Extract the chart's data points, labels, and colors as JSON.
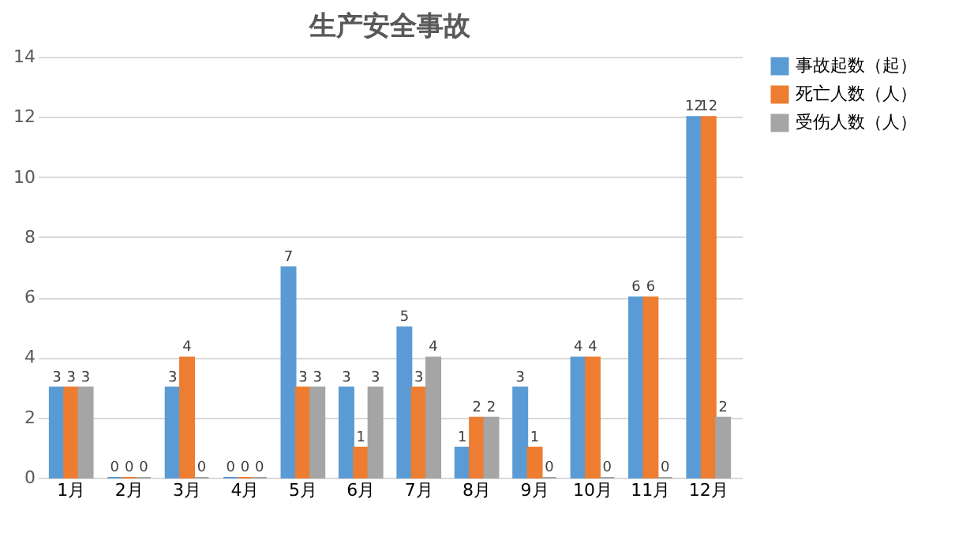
{
  "chart_data": {
    "type": "bar",
    "title": "生产安全事故",
    "categories": [
      "1月",
      "2月",
      "3月",
      "4月",
      "5月",
      "6月",
      "7月",
      "8月",
      "9月",
      "10月",
      "11月",
      "12月"
    ],
    "series": [
      {
        "name": "事故起数（起）",
        "color": "#5b9bd5",
        "values": [
          3,
          0,
          3,
          0,
          7,
          3,
          5,
          1,
          3,
          4,
          6,
          12
        ]
      },
      {
        "name": "死亡人数（人）",
        "color": "#ed7d31",
        "values": [
          3,
          0,
          4,
          0,
          3,
          1,
          3,
          2,
          1,
          4,
          6,
          12
        ]
      },
      {
        "name": "受伤人数（人）",
        "color": "#a5a5a5",
        "values": [
          3,
          0,
          0,
          0,
          3,
          3,
          4,
          2,
          0,
          0,
          0,
          2
        ]
      }
    ],
    "ylim": [
      0,
      14
    ],
    "yticks": [
      0,
      2,
      4,
      6,
      8,
      10,
      12,
      14
    ],
    "grid": "y",
    "legend": "right",
    "data_labels": true
  }
}
